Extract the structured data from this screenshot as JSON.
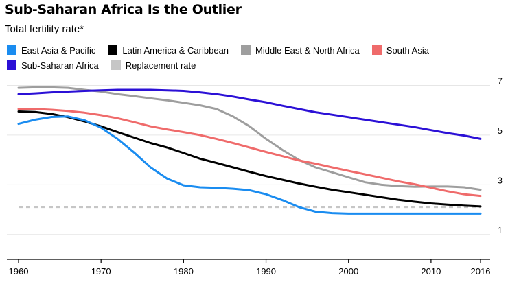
{
  "header": {
    "title": "Sub-Saharan Africa Is the Outlier",
    "subtitle": "Total fertility rate*"
  },
  "chart_data": {
    "type": "line",
    "title": "Sub-Saharan Africa Is the Outlier",
    "ylabel": "Total fertility rate*",
    "xlim": [
      1960,
      2016
    ],
    "ylim": [
      0.0,
      7.4
    ],
    "x_ticks": [
      1960,
      1970,
      1980,
      1990,
      2000,
      2010,
      2016
    ],
    "y_ticks": [
      1,
      3,
      5,
      7
    ],
    "y_axis_side": "right",
    "grid": true,
    "legend_placement": "top",
    "x": [
      1960,
      1962,
      1964,
      1966,
      1968,
      1970,
      1972,
      1974,
      1976,
      1978,
      1980,
      1982,
      1984,
      1986,
      1988,
      1990,
      1992,
      1994,
      1996,
      1998,
      2000,
      2002,
      2004,
      2006,
      2008,
      2010,
      2012,
      2014,
      2016
    ],
    "series": [
      {
        "name": "East Asia & Pacific",
        "color": "#1a8cf0",
        "style": "solid",
        "values": [
          5.45,
          5.62,
          5.73,
          5.75,
          5.6,
          5.3,
          4.85,
          4.3,
          3.7,
          3.25,
          2.98,
          2.9,
          2.88,
          2.84,
          2.78,
          2.62,
          2.38,
          2.1,
          1.92,
          1.86,
          1.84,
          1.84,
          1.84,
          1.84,
          1.84,
          1.84,
          1.84,
          1.84,
          1.84
        ]
      },
      {
        "name": "Latin America & Caribbean",
        "color": "#000000",
        "style": "solid",
        "values": [
          5.95,
          5.93,
          5.85,
          5.72,
          5.55,
          5.35,
          5.12,
          4.9,
          4.68,
          4.5,
          4.28,
          4.05,
          3.88,
          3.7,
          3.52,
          3.35,
          3.2,
          3.05,
          2.92,
          2.8,
          2.7,
          2.6,
          2.5,
          2.4,
          2.32,
          2.25,
          2.2,
          2.16,
          2.13
        ]
      },
      {
        "name": "Middle East & North Africa",
        "color": "#9e9e9e",
        "style": "solid",
        "values": [
          6.9,
          6.92,
          6.92,
          6.9,
          6.82,
          6.75,
          6.65,
          6.57,
          6.48,
          6.4,
          6.3,
          6.2,
          6.05,
          5.75,
          5.35,
          4.85,
          4.4,
          4.0,
          3.7,
          3.5,
          3.3,
          3.1,
          3.0,
          2.95,
          2.92,
          2.93,
          2.93,
          2.9,
          2.8
        ]
      },
      {
        "name": "South Asia",
        "color": "#ef6b6b",
        "style": "solid",
        "values": [
          6.05,
          6.05,
          6.02,
          5.97,
          5.9,
          5.8,
          5.68,
          5.52,
          5.35,
          5.23,
          5.12,
          5.0,
          4.85,
          4.68,
          4.5,
          4.32,
          4.15,
          3.98,
          3.85,
          3.7,
          3.56,
          3.42,
          3.28,
          3.14,
          3.02,
          2.88,
          2.74,
          2.62,
          2.55
        ]
      },
      {
        "name": "Sub-Saharan Africa",
        "color": "#2b10d6",
        "style": "solid",
        "values": [
          6.65,
          6.68,
          6.72,
          6.75,
          6.78,
          6.8,
          6.82,
          6.82,
          6.82,
          6.8,
          6.78,
          6.72,
          6.65,
          6.55,
          6.43,
          6.32,
          6.18,
          6.05,
          5.92,
          5.82,
          5.72,
          5.62,
          5.52,
          5.42,
          5.32,
          5.2,
          5.08,
          4.98,
          4.85
        ]
      },
      {
        "name": "Replacement rate",
        "color": "#c6c6c6",
        "style": "dashed",
        "values": [
          2.1,
          2.1,
          2.1,
          2.1,
          2.1,
          2.1,
          2.1,
          2.1,
          2.1,
          2.1,
          2.1,
          2.1,
          2.1,
          2.1,
          2.1,
          2.1,
          2.1,
          2.1,
          2.1,
          2.1,
          2.1,
          2.1,
          2.1,
          2.1,
          2.1,
          2.1,
          2.1,
          2.1,
          2.1
        ]
      }
    ]
  }
}
